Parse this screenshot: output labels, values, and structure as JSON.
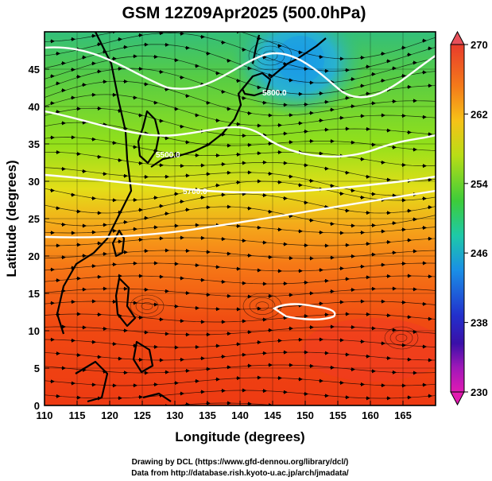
{
  "chart_data": {
    "type": "heatmap",
    "title": "GSM 12Z09Apr2025 (500.0hPa)",
    "xlabel": "Longitude (degrees)",
    "ylabel": "Latitude  (degrees)",
    "xlim": [
      110,
      170
    ],
    "ylim": [
      0,
      50
    ],
    "xticks": [
      "110",
      "115",
      "120",
      "125",
      "130",
      "135",
      "140",
      "145",
      "150",
      "155",
      "160",
      "165"
    ],
    "yticks": [
      "0",
      "5",
      "10",
      "15",
      "20",
      "25",
      "30",
      "35",
      "40",
      "45"
    ],
    "colorbar": {
      "min": 230,
      "max": 270,
      "ticks": [
        "270",
        "262",
        "254",
        "246",
        "238",
        "230"
      ]
    },
    "contours": {
      "labels": [
        "5500.0",
        "5700.0",
        "5800.0"
      ],
      "color": "#ffffff"
    },
    "credits": [
      "Drawing by DCL (https://www.gfd-dennou.org/library/dcl/)",
      "Data from http://database.rish.kyoto-u.ac.jp/arch/jmadata/"
    ]
  }
}
